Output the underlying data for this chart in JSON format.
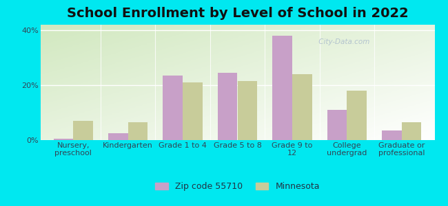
{
  "title": "School Enrollment by Level of School in 2022",
  "categories": [
    "Nursery,\npreschool",
    "Kindergarten",
    "Grade 1 to 4",
    "Grade 5 to 8",
    "Grade 9 to\n12",
    "College\nundergrad",
    "Graduate or\nprofessional"
  ],
  "zipcode_values": [
    0.5,
    2.5,
    23.5,
    24.5,
    38.0,
    11.0,
    3.5
  ],
  "minnesota_values": [
    7.0,
    6.5,
    21.0,
    21.5,
    24.0,
    18.0,
    6.5
  ],
  "zipcode_color": "#c8a0c8",
  "minnesota_color": "#c8cc9a",
  "background_outer": "#00e8f0",
  "ylim": [
    0,
    42
  ],
  "yticks": [
    0,
    20,
    40
  ],
  "ytick_labels": [
    "0%",
    "20%",
    "40%"
  ],
  "legend_label_zip": "Zip code 55710",
  "legend_label_mn": "Minnesota",
  "title_fontsize": 14,
  "tick_fontsize": 8,
  "legend_fontsize": 9,
  "bar_width": 0.36
}
